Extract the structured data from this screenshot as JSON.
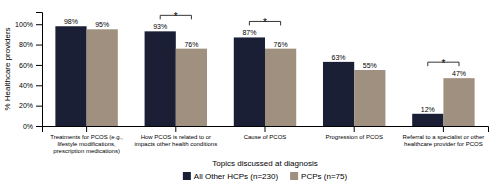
{
  "chart_data": {
    "type": "bar",
    "categories": [
      "Treatments for PCOS (e.g.,\nlifestyle modifications,\nprescription medications)",
      "How PCOS is related to or\nimpacts other health conditions",
      "Cause of PCOS",
      "Progression of PCOS",
      "Referral to a specialist or other\nhealthcare provider for PCOS"
    ],
    "series": [
      {
        "name": "All Other HCPs (n=230)",
        "color": "#1a1f36",
        "values": [
          98,
          93,
          87,
          63,
          12
        ],
        "value_labels": [
          "98%",
          "93%",
          "87%",
          "63%",
          "12%"
        ]
      },
      {
        "name": "PCPs (n=75)",
        "color": "#a09080",
        "values": [
          95,
          76,
          76,
          55,
          47
        ],
        "value_labels": [
          "95%",
          "76%",
          "76%",
          "55%",
          "47%"
        ]
      }
    ],
    "xlabel": "Topics discussed at diagnosis",
    "ylabel": "% Healthcare providers",
    "ylim": [
      0,
      112
    ],
    "yticks": [
      {
        "value": 0,
        "label": "0%"
      },
      {
        "value": 20,
        "label": "20%"
      },
      {
        "value": 40,
        "label": "40%"
      },
      {
        "value": 60,
        "label": "60%"
      },
      {
        "value": 80,
        "label": "80%"
      },
      {
        "value": 100,
        "label": "100%"
      }
    ],
    "data_labels": true,
    "grid": false,
    "legend": "bottom",
    "annotations": [
      {
        "text": "*",
        "category": "How PCOS is related to or\nimpacts other health conditions"
      },
      {
        "text": "*",
        "category": "Cause of PCOS"
      },
      {
        "text": "*",
        "category": "Referral to a specialist or other\nhealthcare provider for PCOS"
      }
    ]
  }
}
